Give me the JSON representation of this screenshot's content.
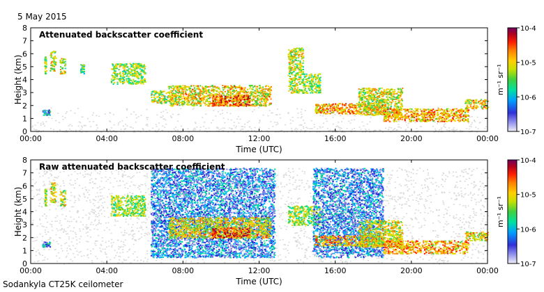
{
  "header": {
    "date": "5 May 2015"
  },
  "footer": {
    "instrument": "Sodankyla CT25K ceilometer"
  },
  "colors": {
    "background_noise": "#d8d8d8",
    "colormap": [
      "#f0f0f8",
      "#7f7fe6",
      "#2b2bd8",
      "#00aaff",
      "#00e0a0",
      "#40d040",
      "#c8e000",
      "#ffd000",
      "#ff8000",
      "#ff2000",
      "#c00000",
      "#800060"
    ]
  },
  "chart_data": [
    {
      "type": "heatmap",
      "title": "Attenuated backscatter coefficient",
      "xlabel": "Time (UTC)",
      "ylabel": "Height (km)",
      "x_ticks": [
        "00:00",
        "04:00",
        "08:00",
        "12:00",
        "16:00",
        "20:00",
        "00:00"
      ],
      "y_ticks": [
        0,
        1,
        2,
        3,
        4,
        5,
        6,
        7,
        8
      ],
      "xlim_hours": [
        0,
        24
      ],
      "ylim_km": [
        0,
        8
      ],
      "colorbar": {
        "label": "m⁻¹ sr⁻¹",
        "ticks": [
          "10-7",
          "10-6",
          "10-5",
          "10-4"
        ],
        "range": [
          -7,
          -4
        ]
      },
      "features": [
        {
          "t0": 0.6,
          "t1": 1.0,
          "h0": 1.3,
          "h1": 1.7,
          "level": -6.2
        },
        {
          "t0": 0.7,
          "t1": 0.8,
          "h0": 4.5,
          "h1": 5.8,
          "level": -5.5
        },
        {
          "t0": 1.0,
          "t1": 1.3,
          "h0": 4.7,
          "h1": 6.3,
          "level": -5.3
        },
        {
          "t0": 1.5,
          "t1": 1.8,
          "h0": 4.5,
          "h1": 5.7,
          "level": -5.3
        },
        {
          "t0": 2.6,
          "t1": 2.8,
          "h0": 4.5,
          "h1": 5.2,
          "level": -5.8
        },
        {
          "t0": 4.2,
          "t1": 6.0,
          "h0": 3.7,
          "h1": 5.3,
          "level": -5.5
        },
        {
          "t0": 6.3,
          "t1": 7.2,
          "h0": 2.2,
          "h1": 3.2,
          "level": -5.4
        },
        {
          "t0": 7.2,
          "t1": 12.6,
          "h0": 2.0,
          "h1": 3.6,
          "level": -5.2
        },
        {
          "t0": 9.5,
          "t1": 11.5,
          "h0": 2.0,
          "h1": 2.8,
          "level": -4.6
        },
        {
          "t0": 13.5,
          "t1": 14.3,
          "h0": 3.0,
          "h1": 6.5,
          "level": -5.4
        },
        {
          "t0": 14.3,
          "t1": 15.2,
          "h0": 3.0,
          "h1": 4.5,
          "level": -5.5
        },
        {
          "t0": 14.9,
          "t1": 18.5,
          "h0": 1.4,
          "h1": 2.2,
          "level": -5.0
        },
        {
          "t0": 17.2,
          "t1": 19.5,
          "h0": 1.3,
          "h1": 3.4,
          "level": -5.3
        },
        {
          "t0": 18.5,
          "t1": 23.0,
          "h0": 0.8,
          "h1": 1.8,
          "level": -5.0
        },
        {
          "t0": 22.8,
          "t1": 24.0,
          "h0": 1.8,
          "h1": 2.5,
          "level": -5.2
        }
      ]
    },
    {
      "type": "heatmap",
      "title": "Raw attenuated backscatter coefficient",
      "xlabel": "Time (UTC)",
      "ylabel": "Height (km)",
      "x_ticks": [
        "00:00",
        "04:00",
        "08:00",
        "12:00",
        "16:00",
        "20:00",
        "00:00"
      ],
      "y_ticks": [
        0,
        1,
        2,
        3,
        4,
        5,
        6,
        7,
        8
      ],
      "xlim_hours": [
        0,
        24
      ],
      "ylim_km": [
        0,
        8
      ],
      "colorbar": {
        "label": "m⁻¹ sr⁻¹",
        "ticks": [
          "10-7",
          "10-6",
          "10-5",
          "10-4"
        ],
        "range": [
          -7,
          -4
        ]
      },
      "features": [
        {
          "t0": 0.6,
          "t1": 1.0,
          "h0": 1.3,
          "h1": 1.7,
          "level": -6.2
        },
        {
          "t0": 0.7,
          "t1": 0.8,
          "h0": 4.5,
          "h1": 5.8,
          "level": -5.5
        },
        {
          "t0": 1.0,
          "t1": 1.3,
          "h0": 4.7,
          "h1": 6.3,
          "level": -5.3
        },
        {
          "t0": 1.5,
          "t1": 1.8,
          "h0": 4.5,
          "h1": 5.7,
          "level": -5.3
        },
        {
          "t0": 4.2,
          "t1": 6.0,
          "h0": 3.7,
          "h1": 5.3,
          "level": -5.5
        },
        {
          "t0": 6.3,
          "t1": 12.8,
          "h0": 0.5,
          "h1": 7.4,
          "level": -6.4
        },
        {
          "t0": 7.2,
          "t1": 12.6,
          "h0": 2.0,
          "h1": 3.6,
          "level": -5.2
        },
        {
          "t0": 9.5,
          "t1": 11.5,
          "h0": 2.0,
          "h1": 2.8,
          "level": -4.6
        },
        {
          "t0": 13.5,
          "t1": 15.2,
          "h0": 3.0,
          "h1": 4.5,
          "level": -5.5
        },
        {
          "t0": 14.8,
          "t1": 18.5,
          "h0": 0.5,
          "h1": 7.4,
          "level": -6.4
        },
        {
          "t0": 14.9,
          "t1": 18.5,
          "h0": 1.4,
          "h1": 2.2,
          "level": -5.0
        },
        {
          "t0": 17.2,
          "t1": 19.5,
          "h0": 1.3,
          "h1": 3.4,
          "level": -5.3
        },
        {
          "t0": 18.5,
          "t1": 23.0,
          "h0": 0.8,
          "h1": 1.8,
          "level": -5.0
        },
        {
          "t0": 22.8,
          "t1": 24.0,
          "h0": 1.8,
          "h1": 2.5,
          "level": -5.2
        }
      ]
    }
  ]
}
